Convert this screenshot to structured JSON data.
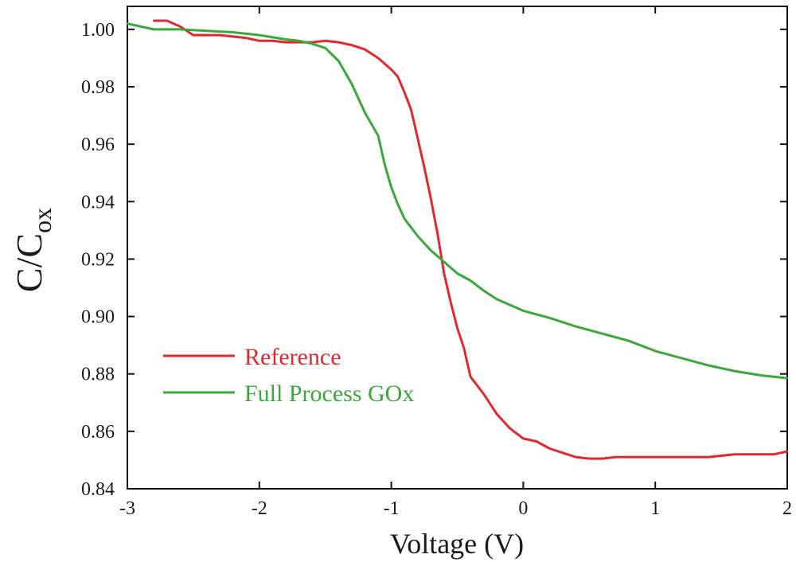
{
  "chart_data": {
    "type": "line",
    "title": "",
    "xlabel": "Voltage (V)",
    "ylabel_main": "C/C",
    "ylabel_sub": "ox",
    "xlim": [
      -3,
      2
    ],
    "ylim": [
      0.84,
      1.008
    ],
    "x_ticks": [
      -3,
      -2,
      -1,
      0,
      1,
      2
    ],
    "x_tick_labels": [
      "-3",
      "-2",
      "-1",
      "0",
      "1",
      "2"
    ],
    "y_ticks": [
      0.84,
      0.86,
      0.88,
      0.9,
      0.92,
      0.94,
      0.96,
      0.98,
      1.0
    ],
    "y_tick_labels": [
      "0.84",
      "0.86",
      "0.88",
      "0.90",
      "0.92",
      "0.94",
      "0.96",
      "0.98",
      "1.00"
    ],
    "grid": false,
    "legend_position": "lower-left",
    "series": [
      {
        "name": "Reference",
        "color": "#e0292e",
        "x": [
          -2.8,
          -2.7,
          -2.6,
          -2.5,
          -2.4,
          -2.3,
          -2.2,
          -2.1,
          -2.0,
          -1.9,
          -1.8,
          -1.7,
          -1.6,
          -1.5,
          -1.4,
          -1.3,
          -1.2,
          -1.1,
          -1.0,
          -0.95,
          -0.9,
          -0.85,
          -0.8,
          -0.75,
          -0.7,
          -0.65,
          -0.6,
          -0.55,
          -0.5,
          -0.45,
          -0.4,
          -0.3,
          -0.2,
          -0.1,
          0.0,
          0.1,
          0.2,
          0.3,
          0.4,
          0.5,
          0.6,
          0.7,
          0.8,
          0.9,
          1.0,
          1.2,
          1.4,
          1.6,
          1.8,
          1.9,
          2.0
        ],
        "y": [
          1.003,
          1.003,
          1.001,
          0.998,
          0.998,
          0.998,
          0.9975,
          0.997,
          0.996,
          0.996,
          0.9955,
          0.9955,
          0.9955,
          0.996,
          0.9955,
          0.9945,
          0.993,
          0.99,
          0.986,
          0.9835,
          0.978,
          0.972,
          0.962,
          0.952,
          0.941,
          0.929,
          0.915,
          0.905,
          0.896,
          0.889,
          0.879,
          0.873,
          0.866,
          0.861,
          0.8575,
          0.8565,
          0.854,
          0.8525,
          0.851,
          0.8505,
          0.8505,
          0.851,
          0.851,
          0.851,
          0.851,
          0.851,
          0.851,
          0.852,
          0.852,
          0.852,
          0.853
        ]
      },
      {
        "name": "Full Process GOx",
        "color": "#3aa83a",
        "x": [
          -3.0,
          -2.8,
          -2.6,
          -2.4,
          -2.2,
          -2.0,
          -1.8,
          -1.7,
          -1.6,
          -1.5,
          -1.4,
          -1.3,
          -1.2,
          -1.1,
          -1.05,
          -1.0,
          -0.95,
          -0.9,
          -0.8,
          -0.7,
          -0.6,
          -0.5,
          -0.4,
          -0.3,
          -0.2,
          -0.1,
          0.0,
          0.2,
          0.4,
          0.6,
          0.8,
          1.0,
          1.2,
          1.4,
          1.6,
          1.8,
          2.0
        ],
        "y": [
          1.002,
          1.0,
          1.0,
          0.9995,
          0.999,
          0.998,
          0.9965,
          0.996,
          0.995,
          0.9935,
          0.989,
          0.981,
          0.971,
          0.963,
          0.953,
          0.945,
          0.939,
          0.934,
          0.928,
          0.923,
          0.919,
          0.915,
          0.9125,
          0.909,
          0.906,
          0.904,
          0.902,
          0.8995,
          0.8965,
          0.894,
          0.8915,
          0.888,
          0.8855,
          0.883,
          0.881,
          0.8795,
          0.8785
        ]
      }
    ]
  }
}
